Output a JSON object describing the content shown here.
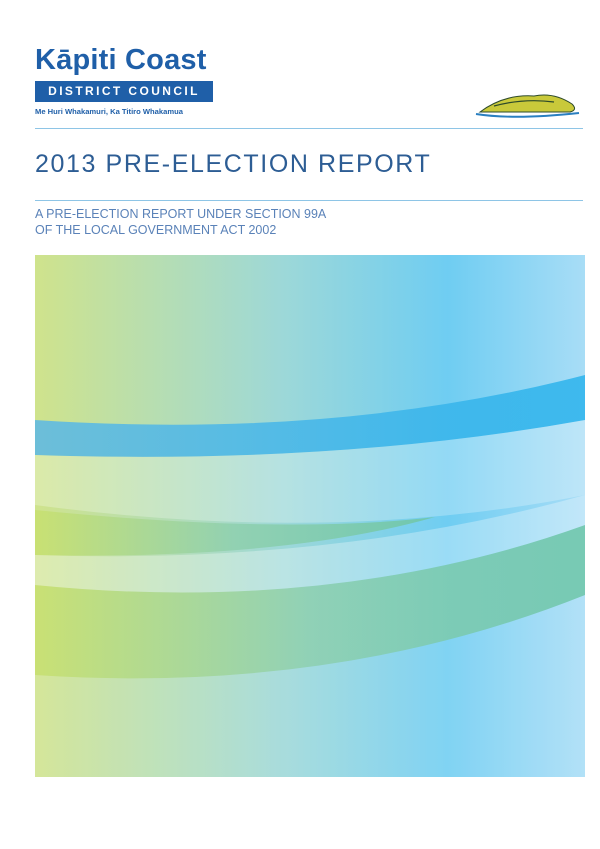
{
  "logo": {
    "name": "Kāpiti Coast",
    "band": "DISTRICT COUNCIL",
    "tagline": "Me Huri Whakamuri, Ka Titiro Whakamua"
  },
  "title": "2013 PRE-ELECTION REPORT",
  "subtitle": [
    "A PRE-ELECTION REPORT UNDER SECTION 99A",
    "OF THE LOCAL GOVERNMENT ACT 2002"
  ]
}
